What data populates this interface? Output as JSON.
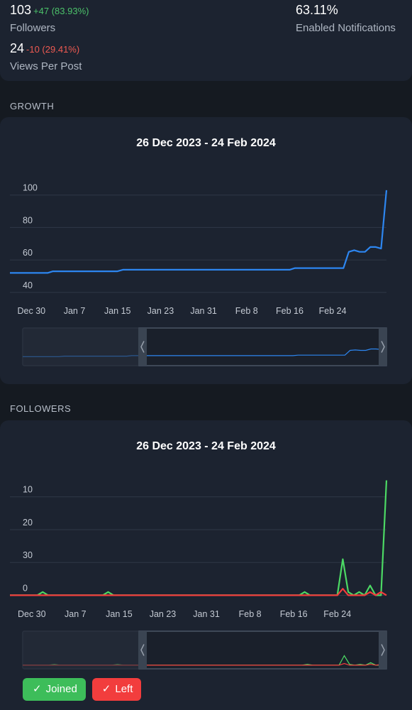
{
  "stats": {
    "followers": {
      "value": "103",
      "change": "+47 (83.93%)",
      "label": "Followers"
    },
    "notifications": {
      "value": "63.11%",
      "label": "Enabled Notifications"
    },
    "views": {
      "value": "24",
      "change": "-10 (29.41%)",
      "label": "Views Per Post"
    }
  },
  "growth": {
    "section_title": "GROWTH",
    "range_title": "26 Dec 2023 - 24 Feb 2024"
  },
  "followers_section": {
    "section_title": "FOLLOWERS",
    "range_title": "26 Dec 2023 - 24 Feb 2024",
    "legend": {
      "joined": "Joined",
      "left": "Left",
      "check": "✓"
    }
  },
  "colors": {
    "growth_line": "#2d86f0",
    "joined": "#4cd964",
    "left": "#f23d3d",
    "grid": "#2f3847"
  },
  "chart_data": [
    {
      "type": "line",
      "title": "26 Dec 2023 - 24 Feb 2024",
      "x_start": "2023-12-26",
      "x_ticks": [
        "Dec 30",
        "Jan 7",
        "Jan 15",
        "Jan 23",
        "Jan 31",
        "Feb 8",
        "Feb 16",
        "Feb 24"
      ],
      "y_ticks": [
        40,
        60,
        80,
        100
      ],
      "ylim": [
        36,
        106
      ],
      "series": [
        {
          "values": [
            52,
            52,
            52,
            52,
            52,
            52,
            52,
            52,
            53,
            53,
            53,
            53,
            53,
            53,
            53,
            53,
            53,
            53,
            53,
            53,
            53,
            54,
            54,
            54,
            54,
            54,
            54,
            54,
            54,
            54,
            54,
            54,
            54,
            54,
            54,
            54,
            54,
            54,
            54,
            54,
            54,
            54,
            54,
            54,
            54,
            54,
            54,
            54,
            54,
            54,
            54,
            54,
            54,
            55,
            55,
            55,
            55,
            55,
            55,
            55,
            55,
            55,
            55,
            65,
            66,
            65,
            65,
            68,
            68,
            67,
            103
          ]
        }
      ]
    },
    {
      "type": "line",
      "title": "26 Dec 2023 - 24 Feb 2024",
      "x_start": "2023-12-26",
      "x_ticks": [
        "Dec 30",
        "Jan 7",
        "Jan 15",
        "Jan 23",
        "Jan 31",
        "Feb 8",
        "Feb 16",
        "Feb 24"
      ],
      "y_ticks": [
        0,
        30,
        20,
        10
      ],
      "y_tick_values": [
        0,
        10,
        20,
        30
      ],
      "ylim": [
        -2.5,
        36
      ],
      "series": [
        {
          "name": "Joined",
          "values": [
            0,
            0,
            0,
            0,
            0,
            0,
            1,
            0,
            0,
            0,
            0,
            0,
            0,
            0,
            0,
            0,
            0,
            0,
            1,
            0,
            0,
            0,
            0,
            0,
            0,
            0,
            0,
            0,
            0,
            0,
            0,
            0,
            0,
            0,
            0,
            0,
            0,
            0,
            0,
            0,
            0,
            0,
            0,
            0,
            0,
            0,
            0,
            0,
            0,
            0,
            0,
            0,
            0,
            0,
            1,
            0,
            0,
            0,
            0,
            0,
            0,
            11,
            1,
            0,
            1,
            0,
            3,
            0,
            0,
            35
          ]
        },
        {
          "name": "Left",
          "values": [
            0,
            0,
            0,
            0,
            0,
            0,
            0,
            0,
            0,
            0,
            0,
            0,
            0,
            0,
            0,
            0,
            0,
            0,
            0,
            0,
            0,
            0,
            0,
            0,
            0,
            0,
            0,
            0,
            0,
            0,
            0,
            0,
            0,
            0,
            0,
            0,
            0,
            0,
            0,
            0,
            0,
            0,
            0,
            0,
            0,
            0,
            0,
            0,
            0,
            0,
            0,
            0,
            0,
            0,
            0,
            0,
            0,
            0,
            0,
            0,
            0,
            2,
            0,
            0,
            0,
            0,
            1,
            0,
            1,
            0
          ]
        }
      ]
    }
  ]
}
